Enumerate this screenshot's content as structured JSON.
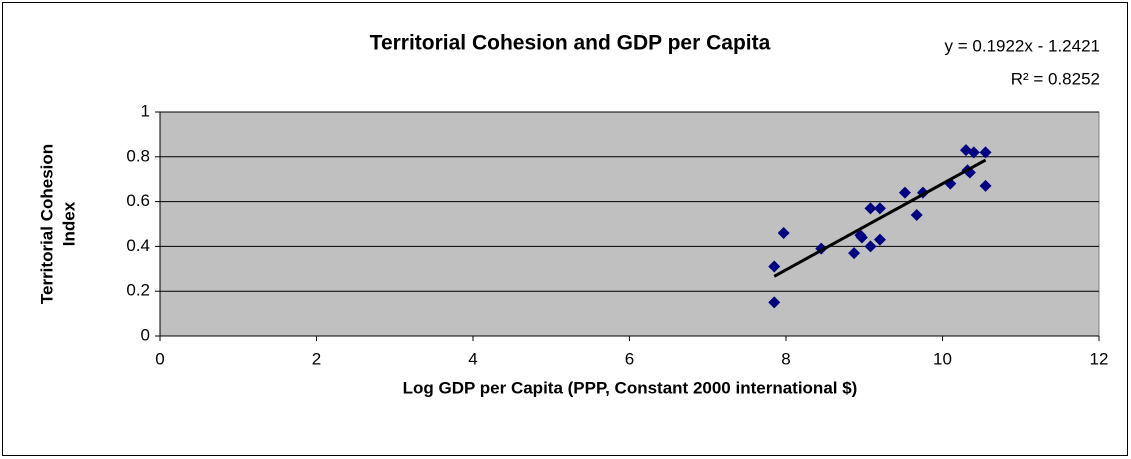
{
  "chart_data": {
    "type": "scatter",
    "title": "Territorial Cohesion and GDP per Capita",
    "xlabel": "Log GDP per Capita (PPP, Constant 2000 international $)",
    "ylabel": [
      "Territorial Cohesion",
      "Index"
    ],
    "series": [
      {
        "color": "#000080",
        "x": [
          7.85,
          7.85,
          7.97,
          8.45,
          8.87,
          8.95,
          8.97,
          9.08,
          9.08,
          9.2,
          9.2,
          9.52,
          9.67,
          9.75,
          10.1,
          10.3,
          10.32,
          10.35,
          10.4,
          10.55,
          10.55
        ],
        "values": [
          0.31,
          0.15,
          0.46,
          0.39,
          0.37,
          0.45,
          0.44,
          0.4,
          0.57,
          0.57,
          0.43,
          0.64,
          0.54,
          0.64,
          0.68,
          0.83,
          0.74,
          0.73,
          0.82,
          0.82,
          0.67
        ]
      }
    ],
    "trendline": {
      "label": "y = 0.1922x - 1.2421",
      "r2_label": "R² = 0.8252",
      "slope": 0.1922,
      "intercept": -1.2421,
      "x": [
        7.85,
        10.55
      ],
      "color": "#000000"
    },
    "xlim": [
      0,
      12
    ],
    "xticks": [
      0,
      2,
      4,
      6,
      8,
      10,
      12
    ],
    "ylim": [
      0,
      1
    ],
    "yticks": [
      0,
      0.2,
      0.4,
      0.6,
      0.8,
      1
    ],
    "grid": true,
    "plot_background": "#c0c0c0"
  }
}
